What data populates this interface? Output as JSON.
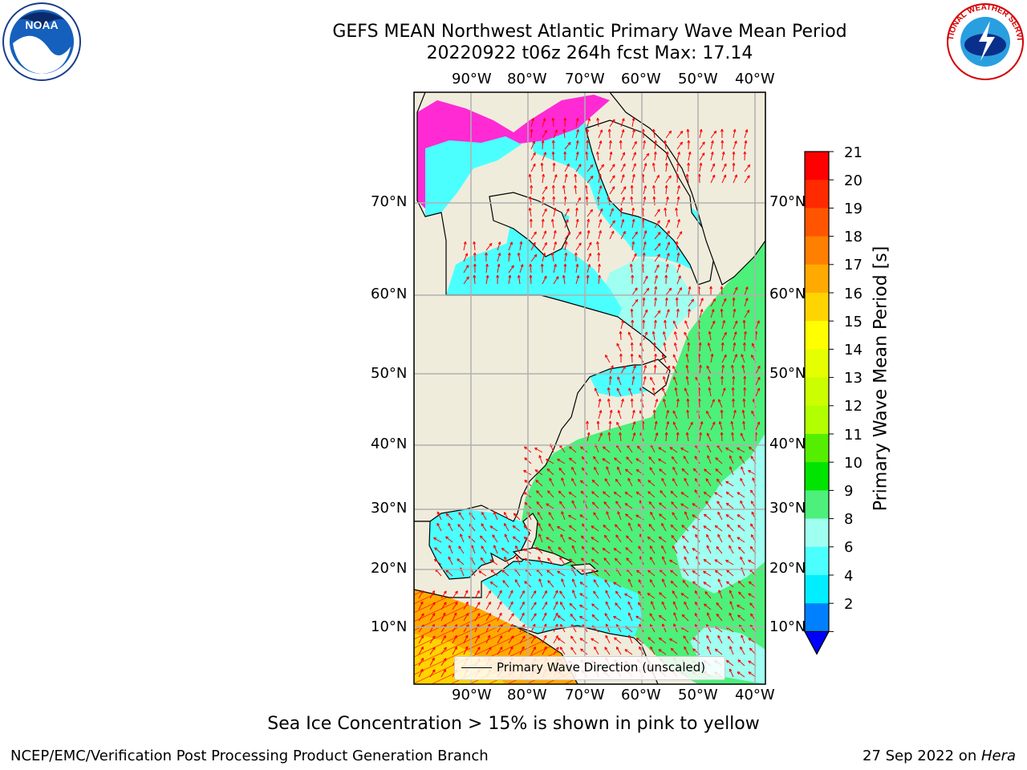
{
  "title": {
    "line1": "GEFS MEAN Northwest Atlantic Primary Wave Mean Period",
    "line2": "20220922 t06z 264h fcst   Max: 17.14"
  },
  "longitude_labels": [
    "90°W",
    "80°W",
    "70°W",
    "60°W",
    "50°W",
    "40°W"
  ],
  "latitude_labels": [
    "70°N",
    "60°N",
    "50°N",
    "40°N",
    "30°N",
    "20°N",
    "10°N"
  ],
  "legend": {
    "label": "Primary Wave Direction (unscaled)"
  },
  "colorbar": {
    "label": "Primary Wave Mean Period [s]",
    "ticks": [
      "21",
      "20",
      "19",
      "18",
      "17",
      "16",
      "15",
      "14",
      "13",
      "12",
      "11",
      "10",
      "9",
      "8",
      "6",
      "4",
      "2"
    ],
    "colors": [
      "#ff0000",
      "#ff2a00",
      "#ff5500",
      "#ff7f00",
      "#ffaa00",
      "#ffd400",
      "#ffff00",
      "#e5ff00",
      "#cbff00",
      "#b2ff00",
      "#55ee00",
      "#00e400",
      "#4cf07a",
      "#9ffff0",
      "#4cffff",
      "#00eeff",
      "#0080ff"
    ],
    "under_color": "#0000ff"
  },
  "colors": {
    "land": "#efecdc",
    "grid": "#b0b0b0",
    "arrows": "#ff0000",
    "ocean_short": "#4cffff",
    "ocean_mid": "#9ffff0",
    "ocean_long": "#4cf07a",
    "swell_south": "#ffaa00",
    "sea_ice": "#ff2ad4"
  },
  "note": "Sea Ice Concentration > 15% is shown in pink to yellow",
  "footer": {
    "left": "NCEP/EMC/Verification Post Processing Product Generation Branch",
    "right_date": "27 Sep 2022 on ",
    "right_machine": "Hera"
  },
  "logos": {
    "noaa": "NOAA",
    "nws": "NATIONAL WEATHER SERVICE"
  }
}
